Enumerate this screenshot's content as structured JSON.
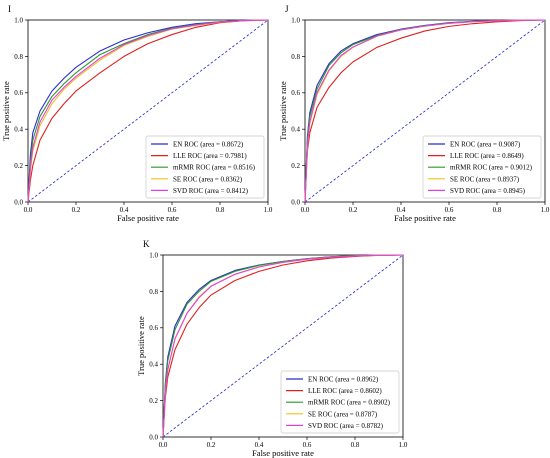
{
  "chart_data": [
    {
      "type": "line",
      "panel_label": "I",
      "xlabel": "False positive rate",
      "ylabel": "True positive rate",
      "xlim": [
        0,
        1
      ],
      "ylim": [
        0,
        1
      ],
      "x_ticks": [
        "0.0",
        "0.2",
        "0.4",
        "0.6",
        "0.8",
        "1.0"
      ],
      "y_ticks": [
        "0.0",
        "0.2",
        "0.4",
        "0.6",
        "0.8",
        "1.0"
      ],
      "grid": false,
      "legend_position": "lower-right",
      "diagonal": {
        "color": "#1f1fd0",
        "style": "dashed",
        "x": [
          0,
          1
        ],
        "y": [
          0,
          1
        ]
      },
      "series": [
        {
          "name": "EN ROC (area = 0.8672)",
          "color": "#2b2bd6",
          "x": [
            0,
            0.01,
            0.02,
            0.05,
            0.1,
            0.15,
            0.2,
            0.3,
            0.4,
            0.5,
            0.6,
            0.7,
            0.8,
            0.9,
            1.0
          ],
          "y": [
            0,
            0.26,
            0.38,
            0.5,
            0.61,
            0.68,
            0.74,
            0.83,
            0.89,
            0.93,
            0.96,
            0.98,
            0.99,
            0.998,
            1.0
          ]
        },
        {
          "name": "LLE ROC (area = 0.7981)",
          "color": "#e02020",
          "x": [
            0,
            0.01,
            0.02,
            0.05,
            0.1,
            0.15,
            0.2,
            0.3,
            0.4,
            0.5,
            0.6,
            0.7,
            0.8,
            0.9,
            1.0
          ],
          "y": [
            0,
            0.12,
            0.2,
            0.34,
            0.46,
            0.54,
            0.61,
            0.71,
            0.8,
            0.87,
            0.92,
            0.96,
            0.985,
            0.996,
            1.0
          ]
        },
        {
          "name": "mRMR ROC (area = 0.8516)",
          "color": "#2a9a2a",
          "x": [
            0,
            0.01,
            0.02,
            0.05,
            0.1,
            0.15,
            0.2,
            0.3,
            0.4,
            0.5,
            0.6,
            0.7,
            0.8,
            0.9,
            1.0
          ],
          "y": [
            0,
            0.22,
            0.34,
            0.47,
            0.58,
            0.65,
            0.71,
            0.81,
            0.87,
            0.92,
            0.955,
            0.975,
            0.99,
            0.997,
            1.0
          ]
        },
        {
          "name": "SE ROC (area = 0.8362)",
          "color": "#f0c020",
          "x": [
            0,
            0.01,
            0.02,
            0.05,
            0.1,
            0.15,
            0.2,
            0.3,
            0.4,
            0.5,
            0.6,
            0.7,
            0.8,
            0.9,
            1.0
          ],
          "y": [
            0,
            0.17,
            0.28,
            0.42,
            0.54,
            0.62,
            0.68,
            0.78,
            0.86,
            0.91,
            0.95,
            0.97,
            0.988,
            0.997,
            1.0
          ]
        },
        {
          "name": "SVD ROC (area = 0.8412)",
          "color": "#e040e0",
          "x": [
            0,
            0.01,
            0.02,
            0.05,
            0.1,
            0.15,
            0.2,
            0.3,
            0.4,
            0.5,
            0.6,
            0.7,
            0.8,
            0.9,
            1.0
          ],
          "y": [
            0,
            0.19,
            0.3,
            0.44,
            0.56,
            0.63,
            0.69,
            0.79,
            0.865,
            0.915,
            0.952,
            0.973,
            0.989,
            0.997,
            1.0
          ]
        }
      ]
    },
    {
      "type": "line",
      "panel_label": "J",
      "xlabel": "False positive rate",
      "ylabel": "True positive rate",
      "xlim": [
        0,
        1
      ],
      "ylim": [
        0,
        1
      ],
      "x_ticks": [
        "0.0",
        "0.2",
        "0.4",
        "0.6",
        "0.8",
        "1.0"
      ],
      "y_ticks": [
        "0.0",
        "0.2",
        "0.4",
        "0.6",
        "0.8",
        "1.0"
      ],
      "grid": false,
      "legend_position": "lower-right",
      "diagonal": {
        "color": "#1f1fd0",
        "style": "dashed",
        "x": [
          0,
          1
        ],
        "y": [
          0,
          1
        ]
      },
      "series": [
        {
          "name": "EN ROC (area = 0.9087)",
          "color": "#2b2bd6",
          "x": [
            0,
            0.01,
            0.02,
            0.05,
            0.1,
            0.15,
            0.2,
            0.3,
            0.4,
            0.5,
            0.6,
            0.7,
            0.8,
            0.9,
            1.0
          ],
          "y": [
            0,
            0.36,
            0.49,
            0.64,
            0.76,
            0.83,
            0.87,
            0.92,
            0.95,
            0.97,
            0.985,
            0.993,
            0.997,
            0.999,
            1.0
          ]
        },
        {
          "name": "LLE ROC (area = 0.8649)",
          "color": "#e02020",
          "x": [
            0,
            0.01,
            0.02,
            0.05,
            0.1,
            0.15,
            0.2,
            0.3,
            0.4,
            0.5,
            0.6,
            0.7,
            0.8,
            0.9,
            1.0
          ],
          "y": [
            0,
            0.28,
            0.38,
            0.52,
            0.63,
            0.71,
            0.77,
            0.85,
            0.9,
            0.94,
            0.965,
            0.98,
            0.99,
            0.997,
            1.0
          ]
        },
        {
          "name": "mRMR ROC (area = 0.9012)",
          "color": "#2a9a2a",
          "x": [
            0,
            0.01,
            0.02,
            0.05,
            0.1,
            0.15,
            0.2,
            0.3,
            0.4,
            0.5,
            0.6,
            0.7,
            0.8,
            0.9,
            1.0
          ],
          "y": [
            0,
            0.34,
            0.47,
            0.62,
            0.75,
            0.82,
            0.865,
            0.915,
            0.948,
            0.968,
            0.983,
            0.992,
            0.996,
            0.999,
            1.0
          ]
        },
        {
          "name": "SE ROC (area = 0.8937)",
          "color": "#f0c020",
          "x": [
            0,
            0.01,
            0.02,
            0.05,
            0.1,
            0.15,
            0.2,
            0.3,
            0.4,
            0.5,
            0.6,
            0.7,
            0.8,
            0.9,
            1.0
          ],
          "y": [
            0,
            0.3,
            0.43,
            0.59,
            0.72,
            0.8,
            0.85,
            0.91,
            0.945,
            0.966,
            0.982,
            0.991,
            0.996,
            0.999,
            1.0
          ]
        },
        {
          "name": "SVD ROC (area = 0.8945)",
          "color": "#e040e0",
          "x": [
            0,
            0.01,
            0.02,
            0.05,
            0.1,
            0.15,
            0.2,
            0.3,
            0.4,
            0.5,
            0.6,
            0.7,
            0.8,
            0.9,
            1.0
          ],
          "y": [
            0,
            0.31,
            0.44,
            0.6,
            0.725,
            0.805,
            0.852,
            0.912,
            0.946,
            0.967,
            0.982,
            0.991,
            0.996,
            0.999,
            1.0
          ]
        }
      ]
    },
    {
      "type": "line",
      "panel_label": "K",
      "xlabel": "False positive rate",
      "ylabel": "True positive rate",
      "xlim": [
        0,
        1
      ],
      "ylim": [
        0,
        1
      ],
      "x_ticks": [
        "0.0",
        "0.2",
        "0.4",
        "0.6",
        "0.8",
        "1.0"
      ],
      "y_ticks": [
        "0.0",
        "0.2",
        "0.4",
        "0.6",
        "0.8",
        "1.0"
      ],
      "grid": false,
      "legend_position": "lower-right",
      "diagonal": {
        "color": "#1f1fd0",
        "style": "dashed",
        "x": [
          0,
          1
        ],
        "y": [
          0,
          1
        ]
      },
      "series": [
        {
          "name": "EN ROC (area = 0.8962)",
          "color": "#2b2bd6",
          "x": [
            0,
            0.01,
            0.02,
            0.05,
            0.1,
            0.15,
            0.2,
            0.3,
            0.4,
            0.5,
            0.6,
            0.7,
            0.8,
            0.9,
            1.0
          ],
          "y": [
            0,
            0.3,
            0.44,
            0.61,
            0.74,
            0.81,
            0.86,
            0.915,
            0.945,
            0.965,
            0.98,
            0.99,
            0.996,
            0.999,
            1.0
          ]
        },
        {
          "name": "LLE ROC (area = 0.8602)",
          "color": "#e02020",
          "x": [
            0,
            0.01,
            0.02,
            0.05,
            0.1,
            0.15,
            0.2,
            0.3,
            0.4,
            0.5,
            0.6,
            0.7,
            0.8,
            0.9,
            1.0
          ],
          "y": [
            0,
            0.22,
            0.33,
            0.48,
            0.62,
            0.71,
            0.78,
            0.86,
            0.91,
            0.945,
            0.968,
            0.983,
            0.992,
            0.998,
            1.0
          ]
        },
        {
          "name": "mRMR ROC (area = 0.8902)",
          "color": "#2a9a2a",
          "x": [
            0,
            0.01,
            0.02,
            0.05,
            0.1,
            0.15,
            0.2,
            0.3,
            0.4,
            0.5,
            0.6,
            0.7,
            0.8,
            0.9,
            1.0
          ],
          "y": [
            0,
            0.29,
            0.42,
            0.59,
            0.73,
            0.8,
            0.855,
            0.91,
            0.943,
            0.964,
            0.979,
            0.99,
            0.996,
            0.999,
            1.0
          ]
        },
        {
          "name": "SE ROC (area = 0.8787)",
          "color": "#f0c020",
          "x": [
            0,
            0.01,
            0.02,
            0.05,
            0.1,
            0.15,
            0.2,
            0.3,
            0.4,
            0.5,
            0.6,
            0.7,
            0.8,
            0.9,
            1.0
          ],
          "y": [
            0,
            0.25,
            0.37,
            0.54,
            0.68,
            0.77,
            0.83,
            0.895,
            0.935,
            0.96,
            0.977,
            0.988,
            0.995,
            0.999,
            1.0
          ]
        },
        {
          "name": "SVD ROC (area = 0.8782)",
          "color": "#e040e0",
          "x": [
            0,
            0.01,
            0.02,
            0.05,
            0.1,
            0.15,
            0.2,
            0.3,
            0.4,
            0.5,
            0.6,
            0.7,
            0.8,
            0.9,
            1.0
          ],
          "y": [
            0,
            0.25,
            0.37,
            0.54,
            0.68,
            0.765,
            0.828,
            0.894,
            0.934,
            0.96,
            0.977,
            0.988,
            0.995,
            0.999,
            1.0
          ]
        }
      ]
    }
  ]
}
